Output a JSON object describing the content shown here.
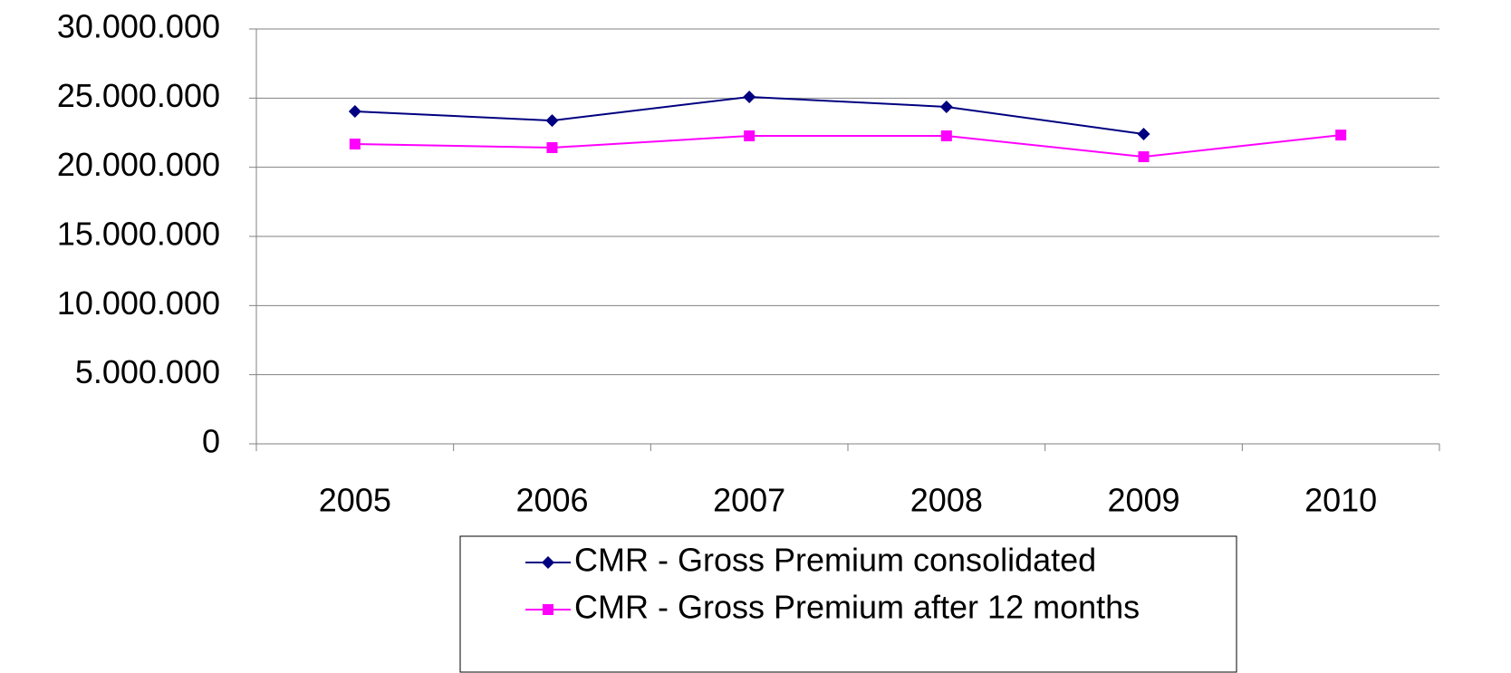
{
  "chart_data": {
    "type": "line",
    "categories": [
      "2005",
      "2006",
      "2007",
      "2008",
      "2009",
      "2010"
    ],
    "series": [
      {
        "name": "CMR - Gross Premium consolidated",
        "color": "#000080",
        "marker": "diamond",
        "values": [
          24040000,
          23380000,
          25090000,
          24370000,
          22400000,
          null
        ]
      },
      {
        "name": "CMR - Gross Premium after 12 months",
        "color": "#ff00ff",
        "marker": "square",
        "values": [
          21680000,
          21420000,
          22270000,
          22270000,
          20760000,
          22330000
        ]
      }
    ],
    "ylim": [
      0,
      30000000
    ],
    "yticks": [
      0,
      {
        "value": 5000000,
        "label": "5.000.000"
      },
      {
        "value": 10000000,
        "label": "10.000.000"
      },
      {
        "value": 15000000,
        "label": "15.000.000"
      },
      {
        "value": 20000000,
        "label": "20.000.000"
      },
      {
        "value": 25000000,
        "label": "25.000.000"
      },
      {
        "value": 30000000,
        "label": "30.000.000"
      }
    ],
    "grid": true,
    "legend": "bottom"
  }
}
